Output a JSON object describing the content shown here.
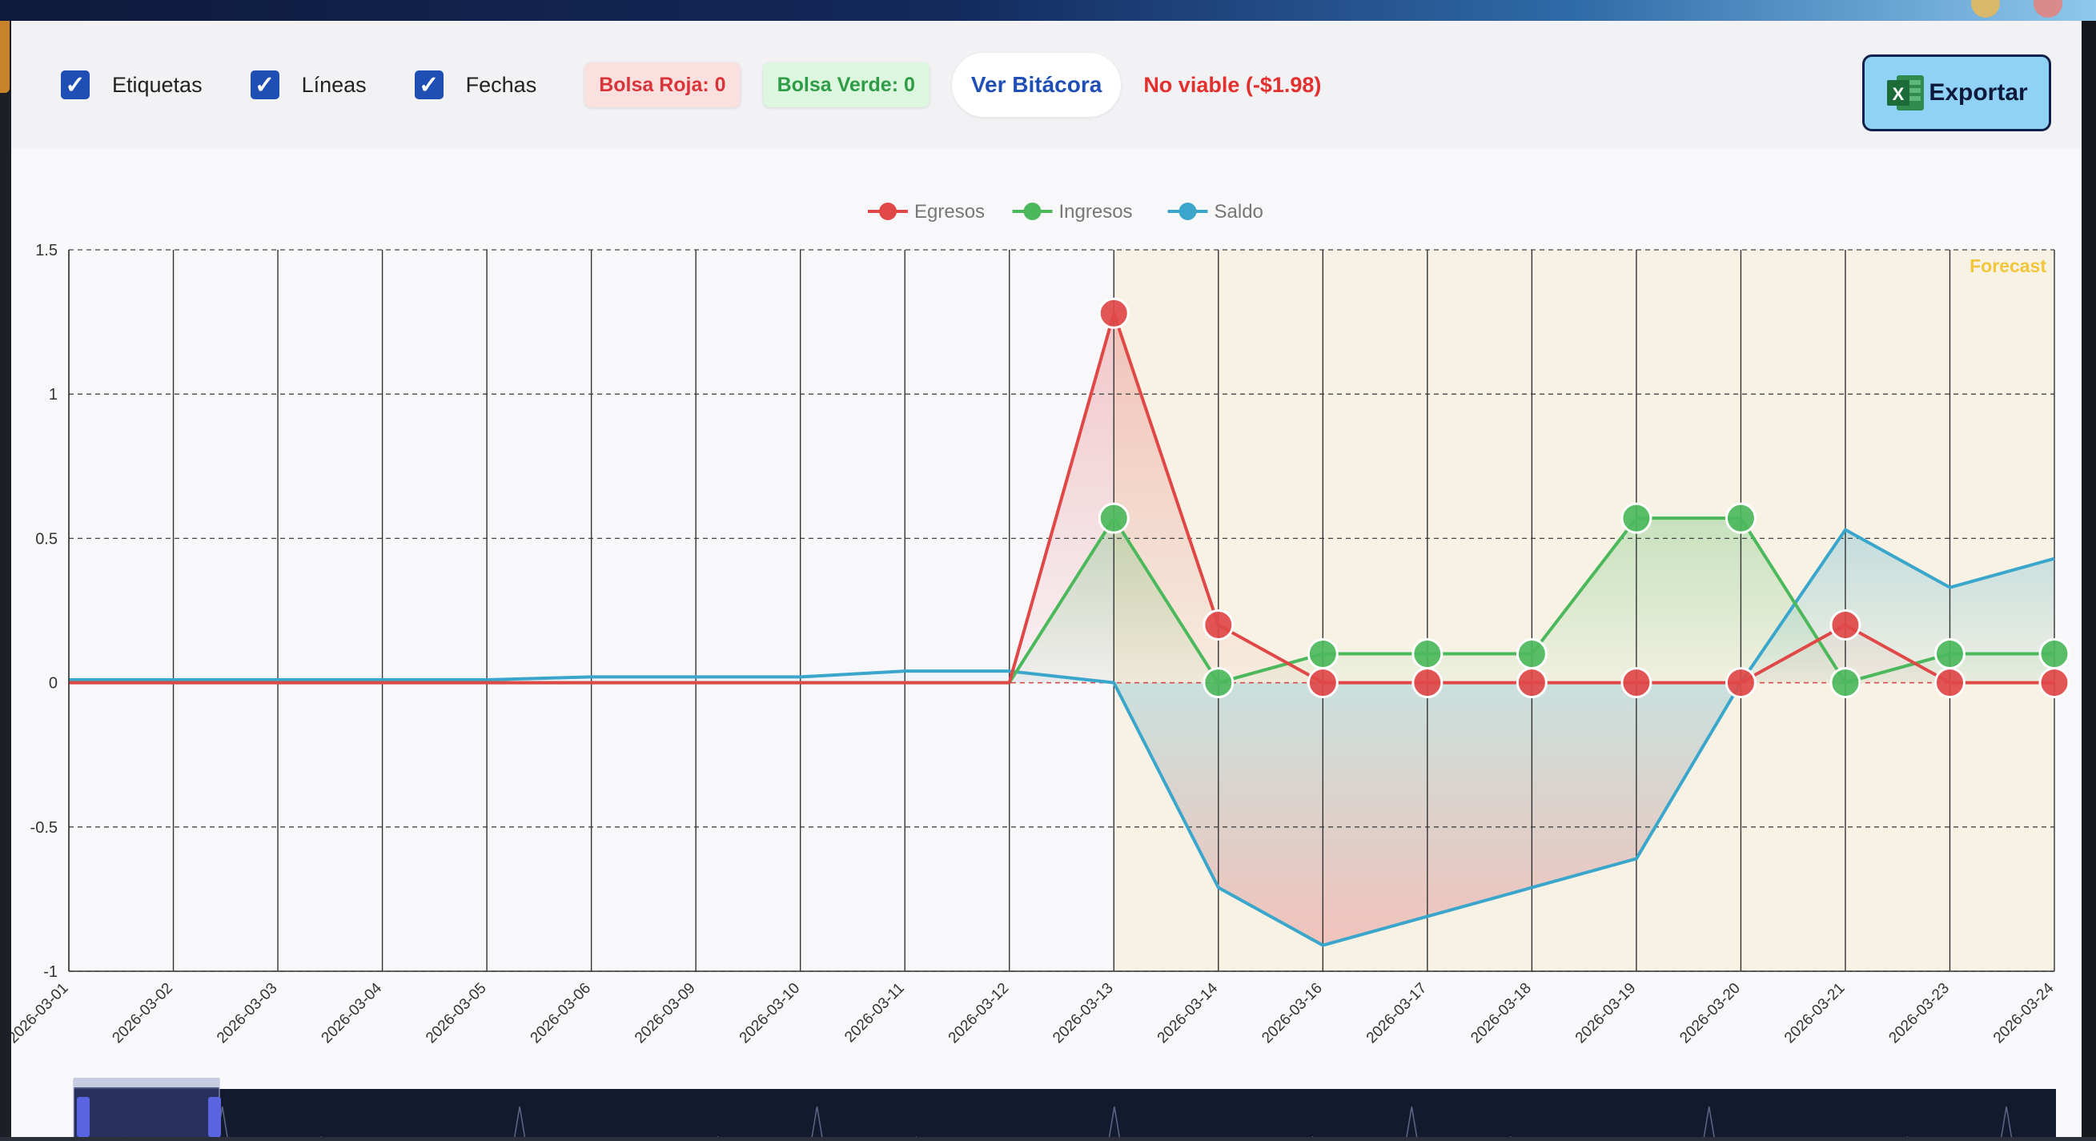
{
  "toolbar": {
    "checkboxes": [
      {
        "label": "Etiquetas",
        "checked": true
      },
      {
        "label": "Líneas",
        "checked": true
      },
      {
        "label": "Fechas",
        "checked": true
      }
    ],
    "bolsa_roja": "Bolsa Roja: 0",
    "bolsa_verde": "Bolsa Verde: 0",
    "ver_bitacora": "Ver Bitácora",
    "status": "No viable (-$1.98)",
    "export_label": "Exportar",
    "check_glyph": "✓",
    "excel_letter": "X"
  },
  "colors": {
    "egresos": "#e04848",
    "ingresos": "#4cb85c",
    "saldo": "#3aa6cc",
    "forecast_bg": "#f7f2e4",
    "forecast_label": "#f2c63a",
    "accent": "#1f4fb4"
  },
  "chart_data": {
    "type": "line",
    "categories": [
      "2026-03-01",
      "2026-03-02",
      "2026-03-03",
      "2026-03-04",
      "2026-03-05",
      "2026-03-06",
      "2026-03-09",
      "2026-03-10",
      "2026-03-11",
      "2026-03-12",
      "2026-03-13",
      "2026-03-14",
      "2026-03-16",
      "2026-03-17",
      "2026-03-18",
      "2026-03-19",
      "2026-03-20",
      "2026-03-21",
      "2026-03-23",
      "2026-03-24"
    ],
    "series": [
      {
        "name": "Egresos",
        "values": [
          0,
          0,
          0,
          0,
          0,
          0,
          0,
          0,
          0,
          0,
          1.28,
          0.2,
          0,
          0,
          0,
          0,
          0,
          0.2,
          0,
          0
        ]
      },
      {
        "name": "Ingresos",
        "values": [
          0,
          0,
          0,
          0,
          0,
          0,
          0,
          0,
          0,
          0,
          0.57,
          0,
          0.1,
          0.1,
          0.1,
          0.57,
          0.57,
          0,
          0.1,
          0.1
        ]
      },
      {
        "name": "Saldo",
        "values": [
          0.01,
          0.01,
          0.01,
          0.01,
          0.01,
          0.02,
          0.02,
          0.02,
          0.04,
          0.04,
          0,
          -0.71,
          -0.91,
          -0.81,
          -0.71,
          -0.61,
          0,
          0.53,
          0.33,
          0.43
        ]
      }
    ],
    "markers_on": [
      "Egresos",
      "Ingresos"
    ],
    "forecast_from_index": 10,
    "forecast_label": "Forecast",
    "ylim": [
      -1,
      1.5
    ],
    "yticks": [
      -1,
      -0.5,
      0,
      0.5,
      1,
      1.5
    ],
    "ytick_labels": [
      "-1",
      "-0.5",
      "0",
      "0.5",
      "1",
      "1.5"
    ],
    "grid": true,
    "legend_position": "top-center"
  }
}
